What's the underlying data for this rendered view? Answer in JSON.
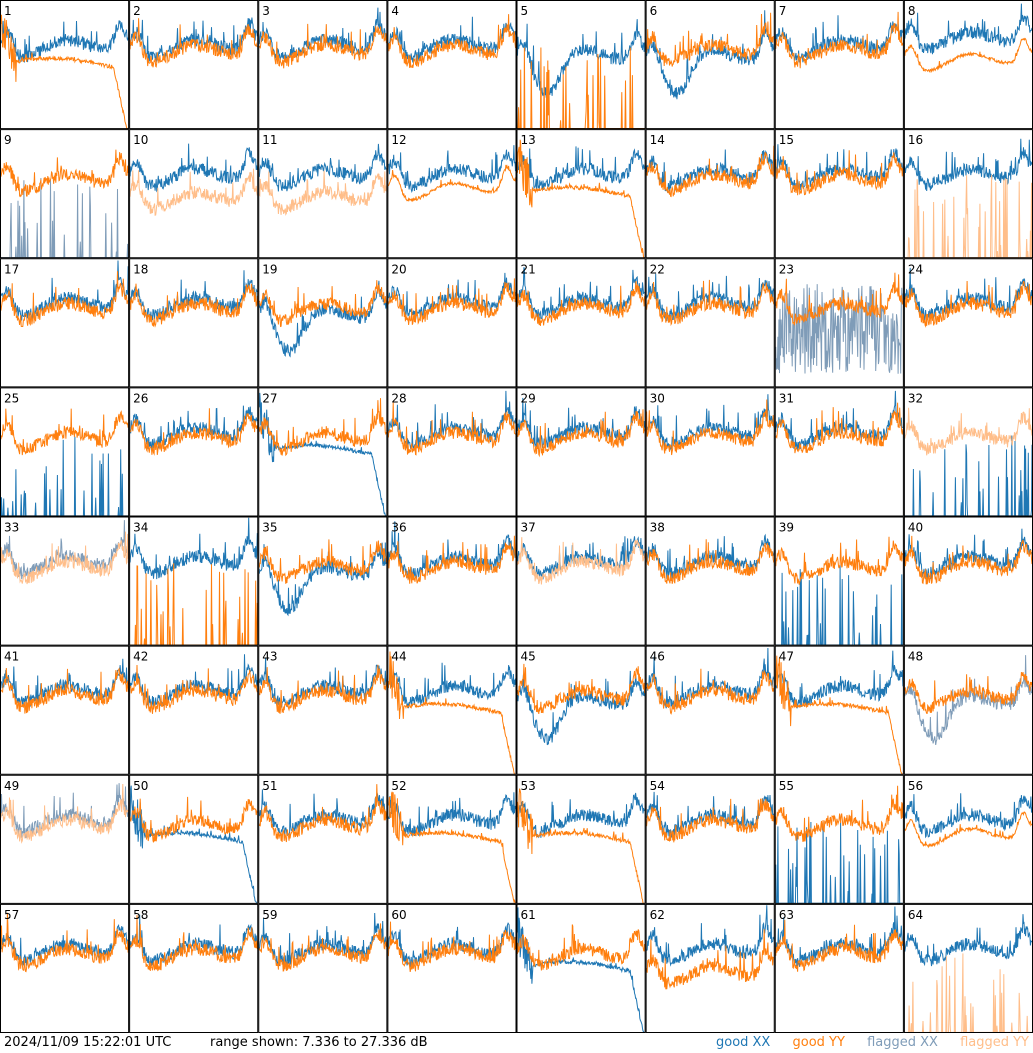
{
  "footer": {
    "timestamp": "2024/11/09 15:22:01 UTC",
    "range_text": "range shown: 7.336 to 27.336 dB"
  },
  "legend": {
    "good_xx": "good XX",
    "good_yy": "good YY",
    "flagged_xx": "flagged XX",
    "flagged_yy": "flagged YY"
  },
  "colors": {
    "good_xx": "#1f77b4",
    "good_yy": "#ff7f0e",
    "flagged_xx": "#7f9cb8",
    "flagged_yy": "#ffbe8a"
  },
  "chart_data": {
    "type": "line",
    "grid": "8x8 small multiples",
    "ylim": [
      7.336,
      27.336
    ],
    "yunit": "dB",
    "panels": [
      {
        "ant": "1",
        "xx": "good",
        "yy": "good",
        "shape_xx": "normal",
        "shape_yy": "rolloff"
      },
      {
        "ant": "2",
        "xx": "good",
        "yy": "good",
        "shape_xx": "normal",
        "shape_yy": "normal"
      },
      {
        "ant": "3",
        "xx": "good",
        "yy": "good",
        "shape_xx": "normal",
        "shape_yy": "normal"
      },
      {
        "ant": "4",
        "xx": "good",
        "yy": "good",
        "shape_xx": "normal",
        "shape_yy": "normal"
      },
      {
        "ant": "5",
        "xx": "good",
        "yy": "good",
        "shape_xx": "dip",
        "shape_yy": "spikes"
      },
      {
        "ant": "6",
        "xx": "good",
        "yy": "good",
        "shape_xx": "dip",
        "shape_yy": "normal"
      },
      {
        "ant": "7",
        "xx": "good",
        "yy": "good",
        "shape_xx": "normal",
        "shape_yy": "normal"
      },
      {
        "ant": "8",
        "xx": "good",
        "yy": "good",
        "shape_xx": "high",
        "shape_yy": "smooth"
      },
      {
        "ant": "9",
        "xx": "flagged",
        "yy": "good",
        "shape_xx": "spikes",
        "shape_yy": "normal"
      },
      {
        "ant": "10",
        "xx": "good",
        "yy": "flagged",
        "shape_xx": "normal",
        "shape_yy": "low"
      },
      {
        "ant": "11",
        "xx": "good",
        "yy": "flagged",
        "shape_xx": "normal",
        "shape_yy": "low"
      },
      {
        "ant": "12",
        "xx": "good",
        "yy": "good",
        "shape_xx": "normal",
        "shape_yy": "smooth"
      },
      {
        "ant": "13",
        "xx": "good",
        "yy": "good",
        "shape_xx": "normal",
        "shape_yy": "rolloff"
      },
      {
        "ant": "14",
        "xx": "good",
        "yy": "good",
        "shape_xx": "normal",
        "shape_yy": "normal"
      },
      {
        "ant": "15",
        "xx": "good",
        "yy": "good",
        "shape_xx": "normal",
        "shape_yy": "normal"
      },
      {
        "ant": "16",
        "xx": "good",
        "yy": "flagged",
        "shape_xx": "normal",
        "shape_yy": "spikes"
      },
      {
        "ant": "17",
        "xx": "good",
        "yy": "good",
        "shape_xx": "normal",
        "shape_yy": "normal"
      },
      {
        "ant": "18",
        "xx": "good",
        "yy": "good",
        "shape_xx": "normal",
        "shape_yy": "normal"
      },
      {
        "ant": "19",
        "xx": "good",
        "yy": "good",
        "shape_xx": "dip",
        "shape_yy": "normal"
      },
      {
        "ant": "20",
        "xx": "good",
        "yy": "good",
        "shape_xx": "normal",
        "shape_yy": "normal"
      },
      {
        "ant": "21",
        "xx": "good",
        "yy": "good",
        "shape_xx": "normal",
        "shape_yy": "normal"
      },
      {
        "ant": "22",
        "xx": "good",
        "yy": "good",
        "shape_xx": "normal",
        "shape_yy": "normal"
      },
      {
        "ant": "23",
        "xx": "flagged",
        "yy": "good",
        "shape_xx": "noise",
        "shape_yy": "normal"
      },
      {
        "ant": "24",
        "xx": "good",
        "yy": "good",
        "shape_xx": "normal",
        "shape_yy": "normal"
      },
      {
        "ant": "25",
        "xx": "good",
        "yy": "good",
        "shape_xx": "spikes",
        "shape_yy": "normal"
      },
      {
        "ant": "26",
        "xx": "good",
        "yy": "good",
        "shape_xx": "normal",
        "shape_yy": "normal"
      },
      {
        "ant": "27",
        "xx": "good",
        "yy": "good",
        "shape_xx": "rolloff",
        "shape_yy": "normal"
      },
      {
        "ant": "28",
        "xx": "good",
        "yy": "good",
        "shape_xx": "normal",
        "shape_yy": "normal"
      },
      {
        "ant": "29",
        "xx": "good",
        "yy": "good",
        "shape_xx": "normal",
        "shape_yy": "normal"
      },
      {
        "ant": "30",
        "xx": "good",
        "yy": "good",
        "shape_xx": "normal",
        "shape_yy": "normal"
      },
      {
        "ant": "31",
        "xx": "good",
        "yy": "good",
        "shape_xx": "normal",
        "shape_yy": "normal"
      },
      {
        "ant": "32",
        "xx": "good",
        "yy": "flagged",
        "shape_xx": "spikes",
        "shape_yy": "normal"
      },
      {
        "ant": "33",
        "xx": "flagged",
        "yy": "flagged",
        "shape_xx": "normal",
        "shape_yy": "normal"
      },
      {
        "ant": "34",
        "xx": "good",
        "yy": "good",
        "shape_xx": "normal",
        "shape_yy": "spikes"
      },
      {
        "ant": "35",
        "xx": "good",
        "yy": "good",
        "shape_xx": "dip",
        "shape_yy": "normal"
      },
      {
        "ant": "36",
        "xx": "good",
        "yy": "good",
        "shape_xx": "normal",
        "shape_yy": "normal"
      },
      {
        "ant": "37",
        "xx": "good",
        "yy": "flagged",
        "shape_xx": "normal",
        "shape_yy": "normal"
      },
      {
        "ant": "38",
        "xx": "good",
        "yy": "good",
        "shape_xx": "normal",
        "shape_yy": "normal"
      },
      {
        "ant": "39",
        "xx": "good",
        "yy": "good",
        "shape_xx": "spikes",
        "shape_yy": "normal"
      },
      {
        "ant": "40",
        "xx": "good",
        "yy": "good",
        "shape_xx": "normal",
        "shape_yy": "normal"
      },
      {
        "ant": "41",
        "xx": "good",
        "yy": "good",
        "shape_xx": "normal",
        "shape_yy": "normal"
      },
      {
        "ant": "42",
        "xx": "good",
        "yy": "good",
        "shape_xx": "normal",
        "shape_yy": "normal"
      },
      {
        "ant": "43",
        "xx": "good",
        "yy": "good",
        "shape_xx": "normal",
        "shape_yy": "normal"
      },
      {
        "ant": "44",
        "xx": "good",
        "yy": "good",
        "shape_xx": "normal",
        "shape_yy": "rolloff"
      },
      {
        "ant": "45",
        "xx": "good",
        "yy": "good",
        "shape_xx": "dip",
        "shape_yy": "normal"
      },
      {
        "ant": "46",
        "xx": "good",
        "yy": "good",
        "shape_xx": "normal",
        "shape_yy": "normal"
      },
      {
        "ant": "47",
        "xx": "good",
        "yy": "good",
        "shape_xx": "normal",
        "shape_yy": "rolloff"
      },
      {
        "ant": "48",
        "xx": "flagged",
        "yy": "good",
        "shape_xx": "dip",
        "shape_yy": "normal"
      },
      {
        "ant": "49",
        "xx": "flagged",
        "yy": "flagged",
        "shape_xx": "normal",
        "shape_yy": "normal"
      },
      {
        "ant": "50",
        "xx": "good",
        "yy": "good",
        "shape_xx": "rolloff",
        "shape_yy": "normal"
      },
      {
        "ant": "51",
        "xx": "good",
        "yy": "good",
        "shape_xx": "normal",
        "shape_yy": "normal"
      },
      {
        "ant": "52",
        "xx": "good",
        "yy": "good",
        "shape_xx": "normal",
        "shape_yy": "rolloff"
      },
      {
        "ant": "53",
        "xx": "good",
        "yy": "good",
        "shape_xx": "normal",
        "shape_yy": "rolloff"
      },
      {
        "ant": "54",
        "xx": "good",
        "yy": "good",
        "shape_xx": "normal",
        "shape_yy": "normal"
      },
      {
        "ant": "55",
        "xx": "good",
        "yy": "good",
        "shape_xx": "spikes",
        "shape_yy": "normal"
      },
      {
        "ant": "56",
        "xx": "good",
        "yy": "good",
        "shape_xx": "normal",
        "shape_yy": "smooth"
      },
      {
        "ant": "57",
        "xx": "good",
        "yy": "good",
        "shape_xx": "normal",
        "shape_yy": "normal"
      },
      {
        "ant": "58",
        "xx": "good",
        "yy": "good",
        "shape_xx": "normal",
        "shape_yy": "normal"
      },
      {
        "ant": "59",
        "xx": "good",
        "yy": "good",
        "shape_xx": "normal",
        "shape_yy": "normal"
      },
      {
        "ant": "60",
        "xx": "good",
        "yy": "good",
        "shape_xx": "normal",
        "shape_yy": "normal"
      },
      {
        "ant": "61",
        "xx": "good",
        "yy": "good",
        "shape_xx": "rolloff",
        "shape_yy": "normal"
      },
      {
        "ant": "62",
        "xx": "good",
        "yy": "good",
        "shape_xx": "normal",
        "shape_yy": "low"
      },
      {
        "ant": "63",
        "xx": "good",
        "yy": "good",
        "shape_xx": "normal",
        "shape_yy": "normal"
      },
      {
        "ant": "64",
        "xx": "good",
        "yy": "flagged",
        "shape_xx": "normal",
        "shape_yy": "spikes"
      }
    ]
  }
}
